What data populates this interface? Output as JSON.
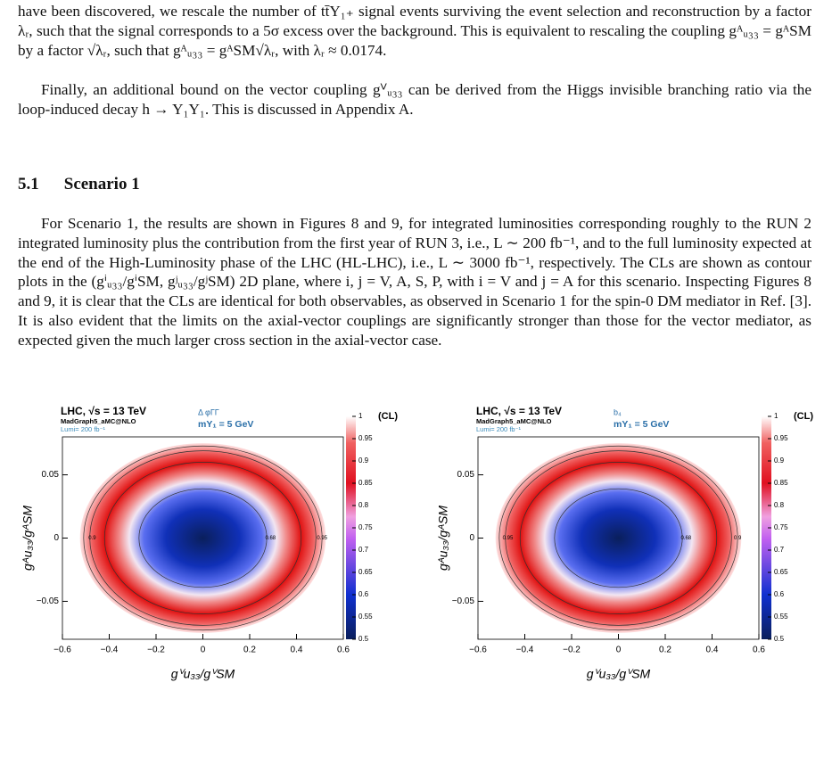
{
  "paragraphs": [
    "have been discovered, we rescale the number of tt̄Y₁₊ signal events surviving the event selection and reconstruction by a factor λᵣ, such that the signal corresponds to a 5σ excess over the background. This is equivalent to rescaling the coupling gᴬᵤ₃₃ = gᴬSM by a factor √λᵣ, such that gᴬᵤ₃₃ = gᴬSM√λᵣ, with λᵣ ≈ 0.0174.",
    "Finally, an additional bound on the vector coupling gⱽᵤ₃₃ can be derived from the Higgs invisible branching ratio via the loop-induced decay h → Y₁Y₁. This is discussed in Appendix A.",
    "For Scenario 1, the results are shown in Figures 8 and 9, for integrated luminosities corresponding roughly to the RUN 2 integrated luminosity plus the contribution from the first year of RUN 3, i.e., L ∼ 200 fb⁻¹, and to the full luminosity expected at the end of the High-Luminosity phase of the LHC (HL-LHC), i.e., L ∼ 3000 fb⁻¹, respectively. The CLs are shown as contour plots in the (gⁱᵤ₃₃/gⁱSM, gʲᵤ₃₃/gʲSM) 2D plane, where i, j = V, A, S, P, with i = V and j = A for this scenario. Inspecting Figures 8 and 9, it is clear that the CLs are identical for both observables, as observed in Scenario 1 for the spin-0 DM mediator in Ref. [3]. It is also evident that the limits on the axial-vector couplings are significantly stronger than those for the vector mediator, as expected given the much larger cross section in the axial-vector case."
  ],
  "section": {
    "number": "5.1",
    "title": "Scenario 1"
  },
  "figures": [
    {
      "header": "LHC,  √s = 13 TeV",
      "generator": "MadGraph5_aMC@NLO",
      "lumi": "Lumi= 200 fb⁻¹",
      "observable": "Δ φΓΓ",
      "mass": "mY₁ = 5 GeV",
      "colorbar_title": "(CL)",
      "xlabel": "gⱽu₃₃/gⱽSM",
      "ylabel": "gᴬu₃₃/gᴬSM",
      "xlim": [
        -0.6,
        0.6
      ],
      "ylim": [
        -0.08,
        0.08
      ],
      "xticks": [
        {
          "value": -0.6,
          "label": "−0.6"
        },
        {
          "value": -0.4,
          "label": "−0.4"
        },
        {
          "value": -0.2,
          "label": "−0.2"
        },
        0,
        0.2,
        0.4,
        0.6
      ],
      "yticks": [
        {
          "value": -0.05,
          "label": "−0.05"
        },
        0,
        0.05
      ],
      "zlim": [
        0.5,
        1
      ],
      "zticks": [
        0.5,
        0.55,
        0.6,
        0.65,
        0.7,
        0.75,
        0.8,
        0.85,
        0.9,
        0.95,
        1
      ],
      "contour_labels": [
        "0.9",
        "0.68",
        "0.95"
      ]
    },
    {
      "header": "LHC,  √s = 13 TeV",
      "generator": "MadGraph5_aMC@NLO",
      "lumi": "Lumi= 200 fb⁻¹",
      "observable": "b₄",
      "mass": "mY₁ = 5 GeV",
      "colorbar_title": "(CL)",
      "xlabel": "gⱽu₃₃/gⱽSM",
      "ylabel": "gᴬu₃₃/gᴬSM",
      "xlim": [
        -0.6,
        0.6
      ],
      "ylim": [
        -0.08,
        0.08
      ],
      "xticks": [
        {
          "value": -0.6,
          "label": "−0.6"
        },
        {
          "value": -0.4,
          "label": "−0.4"
        },
        {
          "value": -0.2,
          "label": "−0.2"
        },
        0,
        0.2,
        0.4,
        0.6
      ],
      "yticks": [
        {
          "value": -0.05,
          "label": "−0.05"
        },
        0,
        0.05
      ],
      "zlim": [
        0.5,
        1
      ],
      "zticks": [
        0.5,
        0.55,
        0.6,
        0.65,
        0.7,
        0.75,
        0.8,
        0.85,
        0.9,
        0.95,
        1
      ],
      "contour_labels": [
        "0.95",
        "0.68",
        "0.9"
      ]
    }
  ]
}
